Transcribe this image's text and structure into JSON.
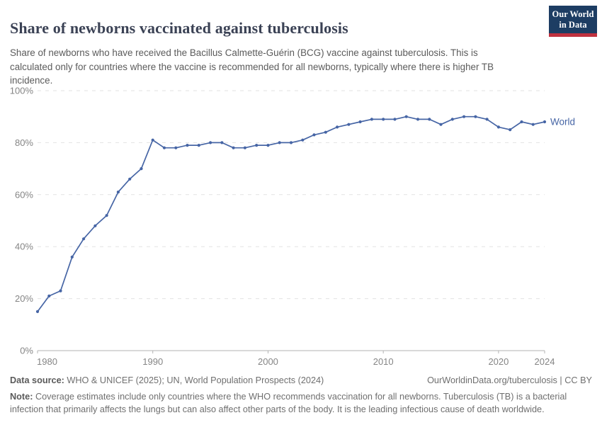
{
  "header": {
    "title": "Share of newborns vaccinated against tuberculosis",
    "subtitle": "Share of newborns who have received the Bacillus Calmette-Guérin (BCG) vaccine against tuberculosis. This is calculated only for countries where the vaccine is recommended for all newborns, typically where there is higher TB incidence."
  },
  "logo": {
    "line1": "Our World",
    "line2": "in Data",
    "bg_color": "#1d3d63",
    "bar_color": "#c0313f"
  },
  "chart_data": {
    "type": "line",
    "title": "Share of newborns vaccinated against tuberculosis",
    "xlabel": "",
    "ylabel": "",
    "xlim": [
      1980,
      2024
    ],
    "ylim": [
      0,
      100
    ],
    "grid": "horizontal-dashed",
    "legend_position": "end-of-line",
    "y_ticks": [
      0,
      20,
      40,
      60,
      80,
      100
    ],
    "y_tick_suffix": "%",
    "x_ticks": [
      1980,
      1990,
      2000,
      2010,
      2020,
      2024
    ],
    "x": [
      1980,
      1981,
      1982,
      1983,
      1984,
      1985,
      1986,
      1987,
      1988,
      1989,
      1990,
      1991,
      1992,
      1993,
      1994,
      1995,
      1996,
      1997,
      1998,
      1999,
      2000,
      2001,
      2002,
      2003,
      2004,
      2005,
      2006,
      2007,
      2008,
      2009,
      2010,
      2011,
      2012,
      2013,
      2014,
      2015,
      2016,
      2017,
      2018,
      2019,
      2020,
      2021,
      2022,
      2023,
      2024
    ],
    "series": [
      {
        "name": "World",
        "color": "#4665a5",
        "values": [
          15,
          21,
          23,
          36,
          43,
          48,
          52,
          61,
          66,
          70,
          81,
          78,
          78,
          79,
          79,
          80,
          80,
          78,
          78,
          79,
          79,
          80,
          80,
          81,
          83,
          84,
          86,
          87,
          88,
          89,
          89,
          89,
          90,
          89,
          89,
          87,
          89,
          90,
          90,
          89,
          86,
          85,
          88,
          87,
          88
        ]
      }
    ],
    "colors": {
      "gridline": "#e2e2e2",
      "axis_line": "#b3b3b3",
      "tick_label": "#858585"
    }
  },
  "footer": {
    "datasource_label": "Data source:",
    "datasource_text": " WHO & UNICEF (2025); UN, World Population Prospects (2024)",
    "link_text": "OurWorldinData.org/tuberculosis | CC BY",
    "note_label": "Note:",
    "note_text": " Coverage estimates include only countries where the WHO recommends vaccination for all newborns. Tuberculosis (TB) is a bacterial infection that primarily affects the lungs but can also affect other parts of the body. It is the leading infectious cause of death worldwide."
  }
}
